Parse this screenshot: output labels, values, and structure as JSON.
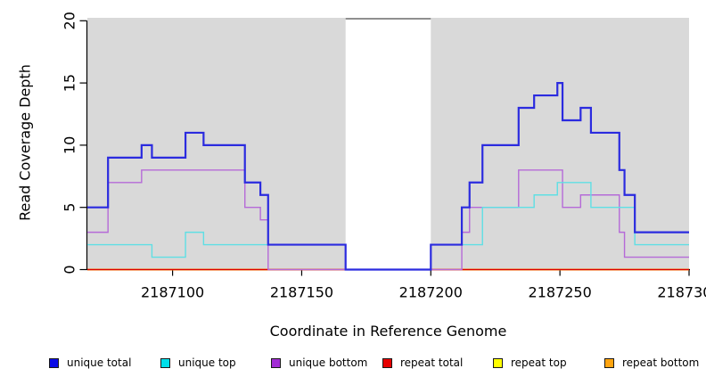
{
  "figure": {
    "xlabel": "Coordinate in Reference Genome",
    "ylabel": "Read Coverage Depth"
  },
  "legend": {
    "items": [
      {
        "label": "unique total",
        "fill": "#0b0be6"
      },
      {
        "label": "unique top",
        "fill": "#00e0ea"
      },
      {
        "label": "unique bottom",
        "fill": "#a22cd5"
      },
      {
        "label": "repeat total",
        "fill": "#e60000"
      },
      {
        "label": "repeat top",
        "fill": "#ffff00"
      },
      {
        "label": "repeat bottom",
        "fill": "#ffa40f"
      }
    ]
  },
  "chart_data": {
    "type": "line",
    "subtype": "step",
    "title": "",
    "xlabel": "Coordinate in Reference Genome",
    "ylabel": "Read Coverage Depth",
    "xlim": [
      2187067,
      2187300
    ],
    "ylim": [
      0,
      20
    ],
    "x_end": 2187300,
    "x_ticks": [
      2187100,
      2187150,
      2187200,
      2187250,
      2187300
    ],
    "y_ticks": [
      0,
      5,
      10,
      15,
      20
    ],
    "grid": false,
    "legend_position": "bottom",
    "shaded_color": "#d9d9d9",
    "shaded_regions": [
      [
        2187067,
        2187167
      ],
      [
        2187200,
        2187300
      ]
    ],
    "gap_top_border": {
      "x": [
        2187167,
        2187200
      ],
      "color": "#8f8f8f"
    },
    "series": [
      {
        "name": "unique total",
        "color": "#2b2bdf",
        "line_width": 2.2,
        "steps": [
          [
            2187067,
            5
          ],
          [
            2187075,
            9
          ],
          [
            2187088,
            10
          ],
          [
            2187092,
            9
          ],
          [
            2187105,
            11
          ],
          [
            2187112,
            10
          ],
          [
            2187128,
            7
          ],
          [
            2187134,
            6
          ],
          [
            2187137,
            2
          ],
          [
            2187167,
            0
          ],
          [
            2187200,
            2
          ],
          [
            2187212,
            5
          ],
          [
            2187215,
            7
          ],
          [
            2187220,
            10
          ],
          [
            2187234,
            13
          ],
          [
            2187240,
            14
          ],
          [
            2187249,
            15
          ],
          [
            2187251,
            12
          ],
          [
            2187258,
            13
          ],
          [
            2187262,
            11
          ],
          [
            2187273,
            8
          ],
          [
            2187275,
            6
          ],
          [
            2187279,
            3
          ]
        ]
      },
      {
        "name": "unique top",
        "color": "#5fdfe4",
        "line_width": 1.4,
        "steps": [
          [
            2187067,
            2
          ],
          [
            2187092,
            1
          ],
          [
            2187105,
            3
          ],
          [
            2187112,
            2
          ],
          [
            2187167,
            0
          ],
          [
            2187200,
            2
          ],
          [
            2187220,
            5
          ],
          [
            2187240,
            6
          ],
          [
            2187249,
            7
          ],
          [
            2187262,
            5
          ],
          [
            2187279,
            2
          ]
        ]
      },
      {
        "name": "unique bottom",
        "color": "#b56ad8",
        "line_width": 1.4,
        "steps": [
          [
            2187067,
            3
          ],
          [
            2187075,
            7
          ],
          [
            2187088,
            8
          ],
          [
            2187128,
            5
          ],
          [
            2187134,
            4
          ],
          [
            2187137,
            0
          ],
          [
            2187212,
            3
          ],
          [
            2187215,
            5
          ],
          [
            2187234,
            8
          ],
          [
            2187251,
            5
          ],
          [
            2187258,
            6
          ],
          [
            2187273,
            3
          ],
          [
            2187275,
            1
          ]
        ]
      },
      {
        "name": "repeat total",
        "color": "#dd0000",
        "line_width": 1.4,
        "steps": [
          [
            2187067,
            0
          ]
        ]
      },
      {
        "name": "repeat top",
        "color": "#ffff00",
        "line_width": 1.4,
        "steps": [
          [
            2187067,
            0
          ]
        ]
      },
      {
        "name": "repeat bottom",
        "color": "#ffa124",
        "line_width": 2,
        "steps": [
          [
            2187067,
            0
          ]
        ]
      }
    ]
  }
}
